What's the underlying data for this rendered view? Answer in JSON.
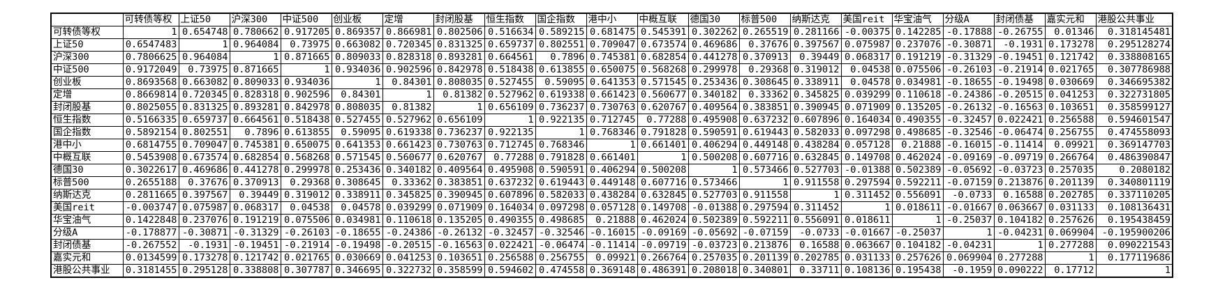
{
  "table": {
    "corner": "",
    "columns": [
      "可转债等权",
      "上证50",
      "沪深300",
      "中证500",
      "创业板",
      "定增",
      "封闭股基",
      "恒生指数",
      "国企指数",
      "港中小",
      "中概互联",
      "德国30",
      "标普500",
      "纳斯达克",
      "美国reit",
      "华宝油气",
      "分级A",
      "封闭债基",
      "嘉实元和",
      "港股公共事业"
    ],
    "rows": [
      {
        "label": "可转债等权",
        "values": [
          "1",
          "0.654748",
          "0.780662",
          "0.917205",
          "0.869357",
          "0.866981",
          "0.802506",
          "0.516634",
          "0.589215",
          "0.681475",
          "0.545391",
          "0.302262",
          "0.265519",
          "0.281166",
          "-0.00375",
          "0.142285",
          "-0.17888",
          "-0.26755",
          "0.01346",
          "0.318145481"
        ]
      },
      {
        "label": "上证50",
        "values": [
          "0.6547483",
          "1",
          "0.964084",
          "0.73975",
          "0.663082",
          "0.720345",
          "0.831325",
          "0.659737",
          "0.802551",
          "0.709047",
          "0.673574",
          "0.469686",
          "0.37676",
          "0.397567",
          "0.075987",
          "0.237076",
          "-0.30871",
          "-0.1931",
          "0.173278",
          "0.295128274"
        ]
      },
      {
        "label": "沪深300",
        "values": [
          "0.7806625",
          "0.964084",
          "1",
          "0.871665",
          "0.809033",
          "0.828318",
          "0.893281",
          "0.664561",
          "0.7896",
          "0.745381",
          "0.682854",
          "0.441278",
          "0.370913",
          "0.39449",
          "0.068317",
          "0.191219",
          "-0.31329",
          "-0.19451",
          "0.121742",
          "0.338808165"
        ]
      },
      {
        "label": "中证500",
        "values": [
          "0.9172049",
          "0.73975",
          "0.871665",
          "1",
          "0.934036",
          "0.902596",
          "0.842978",
          "0.518438",
          "0.613855",
          "0.650075",
          "0.568268",
          "0.299978",
          "0.29368",
          "0.319012",
          "0.04538",
          "0.075506",
          "-0.26103",
          "-0.21914",
          "0.021765",
          "0.307786988"
        ]
      },
      {
        "label": "创业板",
        "values": [
          "0.8693568",
          "0.663082",
          "0.809033",
          "0.934036",
          "1",
          "0.84301",
          "0.808035",
          "0.527455",
          "0.59095",
          "0.641353",
          "0.571545",
          "0.253436",
          "0.308645",
          "0.338911",
          "0.04578",
          "0.034981",
          "-0.18655",
          "-0.19498",
          "0.030669",
          "0.346695382"
        ]
      },
      {
        "label": "定增",
        "values": [
          "0.8669814",
          "0.720345",
          "0.828318",
          "0.902596",
          "0.84301",
          "1",
          "0.81382",
          "0.527962",
          "0.619338",
          "0.661423",
          "0.560677",
          "0.340182",
          "0.33362",
          "0.345825",
          "0.039299",
          "0.110618",
          "-0.24386",
          "-0.20515",
          "0.041253",
          "0.322731805"
        ]
      },
      {
        "label": "封闭股基",
        "values": [
          "0.8025055",
          "0.831325",
          "0.893281",
          "0.842978",
          "0.808035",
          "0.81382",
          "1",
          "0.656109",
          "0.736237",
          "0.730763",
          "0.620767",
          "0.409564",
          "0.383851",
          "0.390945",
          "0.071909",
          "0.135205",
          "-0.26132",
          "-0.16563",
          "0.103651",
          "0.358599127"
        ]
      },
      {
        "label": "恒生指数",
        "values": [
          "0.5166335",
          "0.659737",
          "0.664561",
          "0.518438",
          "0.527455",
          "0.527962",
          "0.656109",
          "1",
          "0.922135",
          "0.712745",
          "0.77288",
          "0.495908",
          "0.637232",
          "0.607896",
          "0.164034",
          "0.490355",
          "-0.32457",
          "0.022421",
          "0.256588",
          "0.594601547"
        ]
      },
      {
        "label": "国企指数",
        "values": [
          "0.5892154",
          "0.802551",
          "0.7896",
          "0.613855",
          "0.59095",
          "0.619338",
          "0.736237",
          "0.922135",
          "1",
          "0.768346",
          "0.791828",
          "0.590591",
          "0.619443",
          "0.582033",
          "0.097298",
          "0.498685",
          "-0.32546",
          "-0.06474",
          "0.256755",
          "0.474558093"
        ]
      },
      {
        "label": "港中小",
        "values": [
          "0.6814755",
          "0.709047",
          "0.745381",
          "0.650075",
          "0.641353",
          "0.661423",
          "0.730763",
          "0.712745",
          "0.768346",
          "1",
          "0.661401",
          "0.406294",
          "0.449148",
          "0.438284",
          "0.057128",
          "0.21888",
          "-0.16015",
          "-0.11414",
          "0.09921",
          "0.369147703"
        ]
      },
      {
        "label": "中概互联",
        "values": [
          "0.5453908",
          "0.673574",
          "0.682854",
          "0.568268",
          "0.571545",
          "0.560677",
          "0.620767",
          "0.77288",
          "0.791828",
          "0.661401",
          "1",
          "0.500208",
          "0.607716",
          "0.632845",
          "0.149708",
          "0.462024",
          "-0.09169",
          "-0.09719",
          "0.266764",
          "0.486390847"
        ]
      },
      {
        "label": "德国30",
        "values": [
          "0.3022617",
          "0.469686",
          "0.441278",
          "0.299978",
          "0.253436",
          "0.340182",
          "0.409564",
          "0.495908",
          "0.590591",
          "0.406294",
          "0.500208",
          "1",
          "0.573466",
          "0.527703",
          "-0.01388",
          "0.502389",
          "-0.05692",
          "-0.03723",
          "0.257035",
          "0.2080182"
        ]
      },
      {
        "label": "标普500",
        "values": [
          "0.2655188",
          "0.37676",
          "0.370913",
          "0.29368",
          "0.308645",
          "0.33362",
          "0.383851",
          "0.637232",
          "0.619443",
          "0.449148",
          "0.607716",
          "0.573466",
          "1",
          "0.911558",
          "0.297594",
          "0.592211",
          "-0.07159",
          "0.213876",
          "0.201139",
          "0.340801119"
        ]
      },
      {
        "label": "纳斯达克",
        "values": [
          "0.2811665",
          "0.397567",
          "0.39449",
          "0.319012",
          "0.338911",
          "0.345825",
          "0.390945",
          "0.607896",
          "0.582033",
          "0.438284",
          "0.632845",
          "0.527703",
          "0.911558",
          "1",
          "0.311452",
          "0.556091",
          "-0.0733",
          "0.16588",
          "0.202785",
          "0.337110205"
        ]
      },
      {
        "label": "美国reit",
        "values": [
          "-0.003747",
          "0.075987",
          "0.068317",
          "0.04538",
          "0.04578",
          "0.039299",
          "0.071909",
          "0.164034",
          "0.097298",
          "0.057128",
          "0.149708",
          "-0.01388",
          "0.297594",
          "0.311452",
          "1",
          "0.018611",
          "-0.01667",
          "0.063667",
          "0.031133",
          "0.108136431"
        ]
      },
      {
        "label": "华宝油气",
        "values": [
          "0.1422848",
          "0.237076",
          "0.191219",
          "0.075506",
          "0.034981",
          "0.110618",
          "0.135205",
          "0.490355",
          "0.498685",
          "0.21888",
          "0.462024",
          "0.502389",
          "0.592211",
          "0.556091",
          "0.018611",
          "1",
          "-0.25037",
          "0.104182",
          "0.257626",
          "0.195438459"
        ]
      },
      {
        "label": "分级A",
        "values": [
          "-0.178877",
          "-0.30871",
          "-0.31329",
          "-0.26103",
          "-0.18655",
          "-0.24386",
          "-0.26132",
          "-0.32457",
          "-0.32546",
          "-0.16015",
          "-0.09169",
          "-0.05692",
          "-0.07159",
          "-0.0733",
          "-0.01667",
          "-0.25037",
          "1",
          "-0.04231",
          "0.069904",
          "-0.195900206"
        ]
      },
      {
        "label": "封闭债基",
        "values": [
          "-0.267552",
          "-0.1931",
          "-0.19451",
          "-0.21914",
          "-0.19498",
          "-0.20515",
          "-0.16563",
          "0.022421",
          "-0.06474",
          "-0.11414",
          "-0.09719",
          "-0.03723",
          "0.213876",
          "0.16588",
          "0.063667",
          "0.104182",
          "-0.04231",
          "1",
          "0.277288",
          "0.090221543"
        ]
      },
      {
        "label": "嘉实元和",
        "values": [
          "0.0134599",
          "0.173278",
          "0.121742",
          "0.021765",
          "0.030669",
          "0.041253",
          "0.103651",
          "0.256588",
          "0.256755",
          "0.09921",
          "0.266764",
          "0.257035",
          "0.201139",
          "0.202785",
          "0.031133",
          "0.257626",
          "0.069904",
          "0.277288",
          "1",
          "0.177119686"
        ]
      },
      {
        "label": "港股公共事业",
        "values": [
          "0.3181455",
          "0.295128",
          "0.338808",
          "0.307787",
          "0.346695",
          "0.322732",
          "0.358599",
          "0.594602",
          "0.474558",
          "0.369148",
          "0.486391",
          "0.208018",
          "0.340801",
          "0.33711",
          "0.108136",
          "0.195438",
          "-0.1959",
          "0.090222",
          "0.17712",
          "1"
        ]
      }
    ]
  }
}
